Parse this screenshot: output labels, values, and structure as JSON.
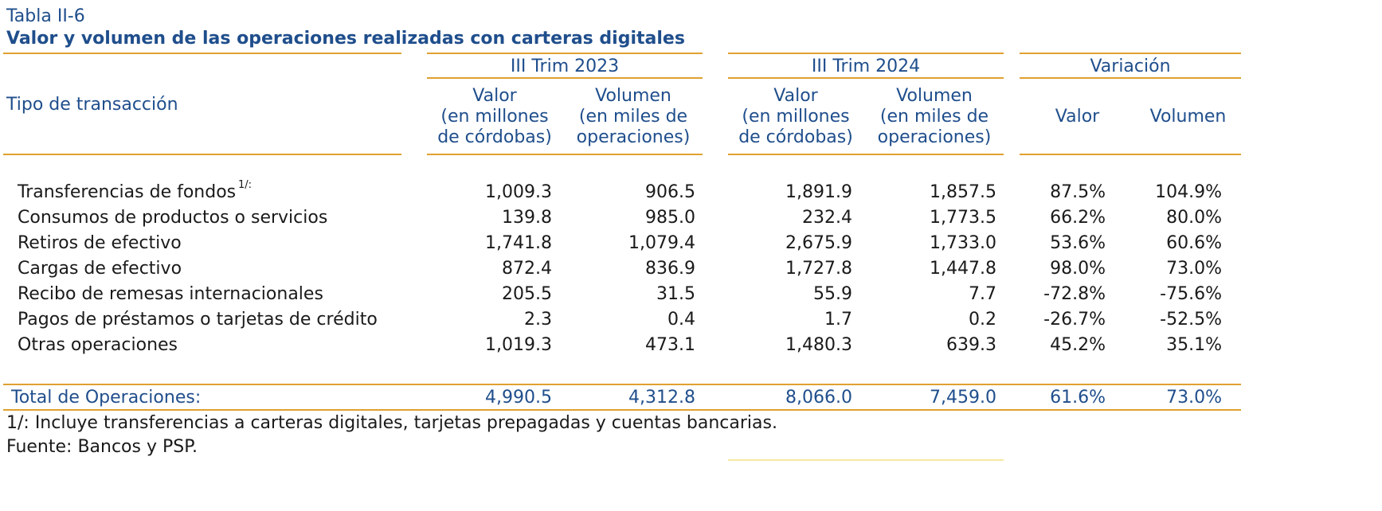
{
  "table": {
    "label": "Tabla II-6",
    "title": "Valor y volumen de las operaciones realizadas con carteras digitales",
    "row_header": "Tipo de transacción",
    "groups": [
      "III Trim 2023",
      "III Trim 2024",
      "Variación"
    ],
    "subheaders": {
      "valor_l1": "Valor",
      "valor_l2": "(en millones",
      "valor_l3": "de córdobas)",
      "vol_l1": "Volumen",
      "vol_l2": "(en miles de",
      "vol_l3": "operaciones)",
      "var_valor": "Valor",
      "var_volumen": "Volumen"
    },
    "footnote_marker": "1/:",
    "rows": [
      {
        "label": "Transferencias de fondos",
        "v23": "1,009.3",
        "q23": "906.5",
        "v24": "1,891.9",
        "q24": "1,857.5",
        "dv": "87.5%",
        "dq": "104.9%"
      },
      {
        "label": "Consumos de productos o servicios",
        "v23": "139.8",
        "q23": "985.0",
        "v24": "232.4",
        "q24": "1,773.5",
        "dv": "66.2%",
        "dq": "80.0%"
      },
      {
        "label": "Retiros de efectivo",
        "v23": "1,741.8",
        "q23": "1,079.4",
        "v24": "2,675.9",
        "q24": "1,733.0",
        "dv": "53.6%",
        "dq": "60.6%"
      },
      {
        "label": "Cargas de efectivo",
        "v23": "872.4",
        "q23": "836.9",
        "v24": "1,727.8",
        "q24": "1,447.8",
        "dv": "98.0%",
        "dq": "73.0%"
      },
      {
        "label": "Recibo de remesas internacionales",
        "v23": "205.5",
        "q23": "31.5",
        "v24": "55.9",
        "q24": "7.7",
        "dv": "-72.8%",
        "dq": "-75.6%"
      },
      {
        "label": "Pagos de préstamos o tarjetas de crédito",
        "v23": "2.3",
        "q23": "0.4",
        "v24": "1.7",
        "q24": "0.2",
        "dv": "-26.7%",
        "dq": "-52.5%"
      },
      {
        "label": "Otras operaciones",
        "v23": "1,019.3",
        "q23": "473.1",
        "v24": "1,480.3",
        "q24": "639.3",
        "dv": "45.2%",
        "dq": "35.1%"
      }
    ],
    "total": {
      "label": "Total de Operaciones:",
      "v23": "4,990.5",
      "q23": "4,312.8",
      "v24": "8,066.0",
      "q24": "7,459.0",
      "dv": "61.6%",
      "dq": "73.0%"
    },
    "notes": [
      "1/: Incluye transferencias a carteras digitales, tarjetas prepagadas y cuentas bancarias.",
      "Fuente: Bancos y PSP."
    ]
  },
  "colors": {
    "title_blue": "#1f4e8c",
    "rule_gold": "#e0a030",
    "text_dark": "#1a1a1a"
  }
}
